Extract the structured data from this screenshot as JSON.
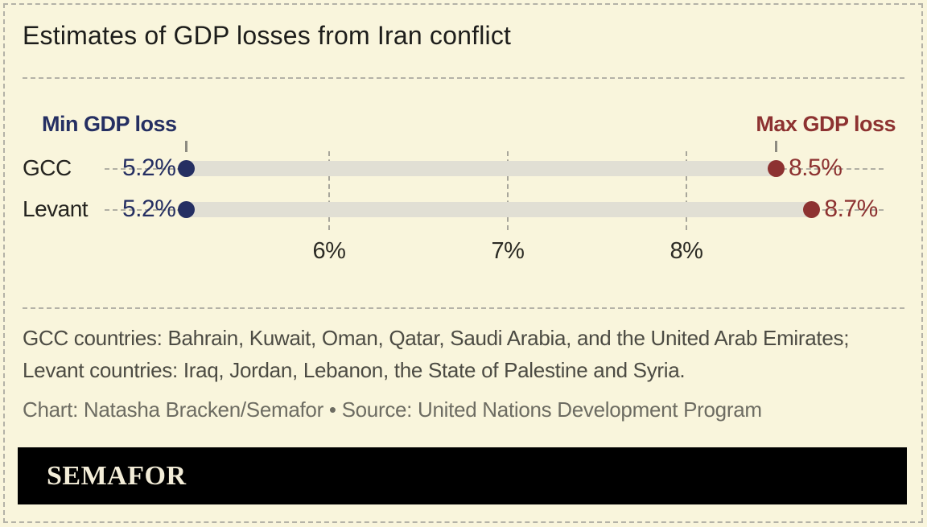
{
  "title": "Estimates of GDP losses from Iran conflict",
  "chart_data": {
    "type": "dumbbell",
    "categories": [
      "GCC",
      "Levant"
    ],
    "series": [
      {
        "name": "Min GDP loss",
        "values": [
          5.2,
          5.2
        ],
        "labels": [
          "5.2%",
          "5.2%"
        ],
        "color": "#252f62"
      },
      {
        "name": "Max GDP loss",
        "values": [
          8.5,
          8.7
        ],
        "labels": [
          "8.5%",
          "8.7%"
        ],
        "color": "#8d3231"
      }
    ],
    "x_ticks": [
      {
        "value": 6,
        "label": "6%"
      },
      {
        "value": 7,
        "label": "7%"
      },
      {
        "value": 8,
        "label": "8%"
      }
    ],
    "xlim": [
      5.0,
      9.0
    ],
    "grid": "vertical-dashed",
    "legend_position": "above-endpoints"
  },
  "footnote": "GCC countries: Bahrain, Kuwait, Oman, Qatar, Saudi Arabia, and the United Arab Emirates; Levant countries: Iraq, Jordan, Lebanon, the State of Palestine and Syria.",
  "credit": "Chart: Natasha Bracken/Semafor • Source: United Nations Development Program",
  "logo": {
    "text": "SEMAFOR"
  },
  "colors": {
    "background": "#f9f5dc",
    "min": "#252f62",
    "max": "#8d3231",
    "band": "#e1dfd4",
    "grid": "#a8a69b",
    "row_dash": "#b1afa4",
    "border_dash": "#b4b2a7",
    "title": "#1d1d1b",
    "category": "#24231f",
    "axis": "#2c2b25",
    "footnote": "#4c4b43",
    "credit": "#6d6c62",
    "logo_bg": "#000000",
    "logo_text": "#f3edd8"
  }
}
